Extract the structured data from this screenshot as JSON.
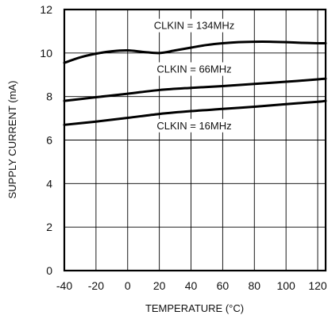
{
  "chart_data": {
    "type": "line",
    "title": "",
    "xlabel": "TEMPERATURE (°C)",
    "ylabel": "SUPPLY CURRENT (mA)",
    "xlim": [
      -40,
      125
    ],
    "ylim": [
      0,
      12
    ],
    "x_ticks": [
      -40,
      -20,
      0,
      20,
      40,
      60,
      80,
      100,
      120
    ],
    "y_ticks": [
      0,
      2,
      4,
      6,
      8,
      10,
      12
    ],
    "grid": true,
    "legend": "none",
    "series": [
      {
        "name": "CLKIN = 134MHz",
        "x": [
          -40,
          -30,
          -20,
          -10,
          0,
          10,
          20,
          30,
          40,
          50,
          60,
          70,
          80,
          90,
          100,
          110,
          120,
          125
        ],
        "y": [
          9.55,
          9.8,
          9.97,
          10.08,
          10.12,
          10.05,
          10.0,
          10.12,
          10.25,
          10.37,
          10.45,
          10.5,
          10.52,
          10.52,
          10.5,
          10.47,
          10.45,
          10.45
        ]
      },
      {
        "name": "CLKIN = 66MHz",
        "x": [
          -40,
          -20,
          0,
          20,
          40,
          60,
          80,
          100,
          120,
          125
        ],
        "y": [
          7.8,
          7.97,
          8.13,
          8.3,
          8.4,
          8.48,
          8.58,
          8.68,
          8.79,
          8.82
        ]
      },
      {
        "name": "CLKIN = 16MHz",
        "x": [
          -40,
          -20,
          0,
          20,
          40,
          60,
          80,
          100,
          120,
          125
        ],
        "y": [
          6.7,
          6.85,
          7.02,
          7.2,
          7.33,
          7.43,
          7.53,
          7.65,
          7.76,
          7.8
        ]
      }
    ]
  }
}
